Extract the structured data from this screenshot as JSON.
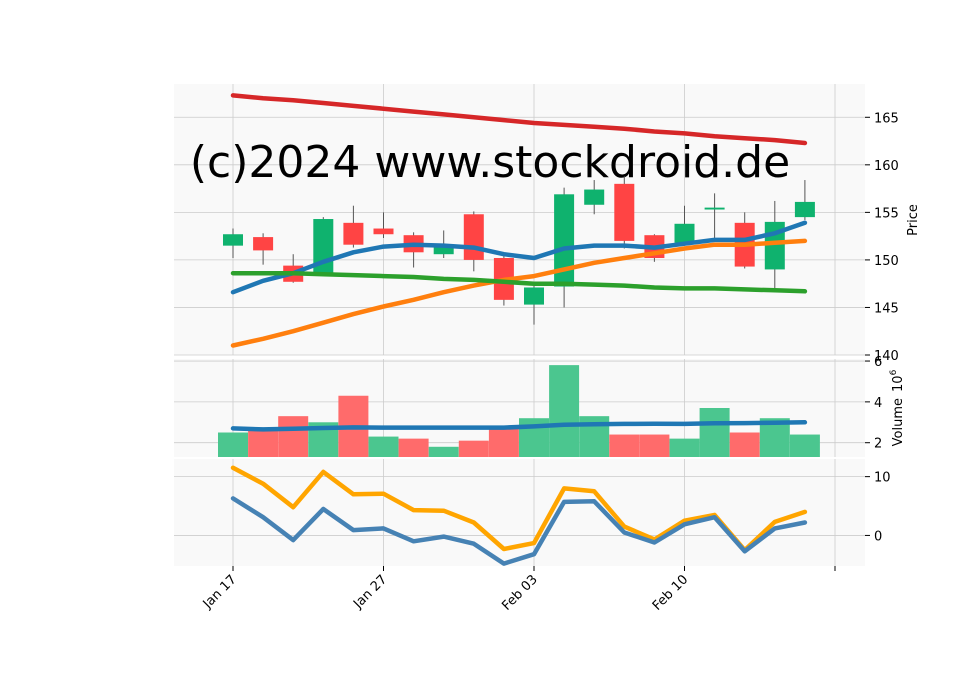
{
  "watermark": "(c)2024 www.stockdroid.de",
  "colors": {
    "panel_bg": "#f9f9f9",
    "grid": "#cccccc",
    "up": "#0fb26e",
    "down": "#ff4444",
    "vol_up": "#4bc68f",
    "vol_down": "#ff6b6b",
    "ma_short": "#1f77b4",
    "ma_mid": "#ff7f0e",
    "ma_long": "#2ca02c",
    "ma_longest": "#d62728",
    "vol_ma": "#1f77b4",
    "osc_a": "#ffa500",
    "osc_b": "#4682b4",
    "wick": "#555555",
    "watermark": "#e8e8e8"
  },
  "chart_data": {
    "type": "candlestick",
    "x_ticks": [
      "Jan 17",
      "Jan 27",
      "Feb 03",
      "Feb 10"
    ],
    "x_tick_index": [
      0,
      5,
      10,
      15
    ],
    "price_panel": {
      "ylabel": "Price",
      "ylim": [
        140,
        168.5
      ],
      "yticks": [
        "140",
        "145",
        "150",
        "155",
        "160",
        "165"
      ],
      "candles": [
        {
          "o": 151.5,
          "h": 153.3,
          "l": 150.2,
          "c": 152.7
        },
        {
          "o": 152.4,
          "h": 152.8,
          "l": 149.5,
          "c": 151.0
        },
        {
          "o": 149.4,
          "h": 150.6,
          "l": 147.6,
          "c": 147.7
        },
        {
          "o": 148.5,
          "h": 154.5,
          "l": 148.3,
          "c": 154.3
        },
        {
          "o": 153.9,
          "h": 155.7,
          "l": 151.3,
          "c": 151.6
        },
        {
          "o": 153.3,
          "h": 155.0,
          "l": 152.3,
          "c": 152.7
        },
        {
          "o": 152.6,
          "h": 152.9,
          "l": 149.2,
          "c": 150.8
        },
        {
          "o": 150.6,
          "h": 153.1,
          "l": 150.2,
          "c": 151.4
        },
        {
          "o": 154.8,
          "h": 155.1,
          "l": 148.8,
          "c": 150.0
        },
        {
          "o": 150.2,
          "h": 150.7,
          "l": 145.2,
          "c": 145.8
        },
        {
          "o": 145.3,
          "h": 147.6,
          "l": 143.2,
          "c": 147.1
        },
        {
          "o": 147.2,
          "h": 157.6,
          "l": 145.0,
          "c": 156.9
        },
        {
          "o": 155.8,
          "h": 158.4,
          "l": 154.8,
          "c": 157.4
        },
        {
          "o": 158.0,
          "h": 158.8,
          "l": 151.2,
          "c": 152.0
        },
        {
          "o": 152.6,
          "h": 152.7,
          "l": 149.8,
          "c": 150.2
        },
        {
          "o": 151.8,
          "h": 155.7,
          "l": 151.5,
          "c": 153.8
        },
        {
          "o": 155.3,
          "h": 157.0,
          "l": 151.9,
          "c": 155.5
        },
        {
          "o": 153.9,
          "h": 155.0,
          "l": 149.1,
          "c": 149.3
        },
        {
          "o": 149.0,
          "h": 156.2,
          "l": 146.9,
          "c": 154.0
        },
        {
          "o": 154.5,
          "h": 158.4,
          "l": 154.2,
          "c": 156.1
        }
      ],
      "series": [
        {
          "key": "ma_short",
          "values": [
            146.6,
            147.8,
            148.6,
            149.8,
            150.8,
            151.4,
            151.6,
            151.5,
            151.3,
            150.6,
            150.2,
            151.2,
            151.5,
            151.5,
            151.3,
            151.7,
            152.1,
            152.1,
            152.8,
            153.9
          ]
        },
        {
          "key": "ma_mid",
          "values": [
            141.0,
            141.7,
            142.5,
            143.4,
            144.3,
            145.1,
            145.8,
            146.6,
            147.3,
            147.9,
            148.3,
            149.0,
            149.7,
            150.2,
            150.7,
            151.2,
            151.6,
            151.6,
            151.8,
            152.0
          ]
        },
        {
          "key": "ma_long",
          "values": [
            148.6,
            148.6,
            148.6,
            148.5,
            148.4,
            148.3,
            148.2,
            148.0,
            147.9,
            147.7,
            147.5,
            147.5,
            147.4,
            147.3,
            147.1,
            147.0,
            147.0,
            146.9,
            146.8,
            146.7
          ]
        },
        {
          "key": "ma_longest",
          "values": [
            167.3,
            167.0,
            166.8,
            166.5,
            166.2,
            165.9,
            165.6,
            165.3,
            165.0,
            164.7,
            164.4,
            164.2,
            164.0,
            163.8,
            163.5,
            163.3,
            163.0,
            162.8,
            162.6,
            162.3
          ]
        }
      ]
    },
    "volume_panel": {
      "ylabel": "Volume",
      "scale_label": "10",
      "scale_exp": "6",
      "ylim": [
        1.3,
        6.1
      ],
      "yticks": [
        "2",
        "4",
        "6"
      ],
      "volumes": [
        2.5,
        2.6,
        3.3,
        3.0,
        4.3,
        2.3,
        2.2,
        1.8,
        2.1,
        2.7,
        3.2,
        5.8,
        3.3,
        2.4,
        2.4,
        2.2,
        3.7,
        2.5,
        3.2,
        2.4
      ],
      "up": [
        true,
        false,
        false,
        true,
        false,
        true,
        false,
        true,
        false,
        false,
        true,
        true,
        true,
        false,
        false,
        true,
        true,
        false,
        true,
        true
      ],
      "ma": [
        2.7,
        2.65,
        2.68,
        2.72,
        2.75,
        2.74,
        2.74,
        2.74,
        2.74,
        2.74,
        2.8,
        2.88,
        2.9,
        2.92,
        2.93,
        2.92,
        2.95,
        2.96,
        2.98,
        3.0
      ]
    },
    "osc_panel": {
      "ylim": [
        -5.2,
        13.0
      ],
      "yticks": [
        "0",
        "10"
      ],
      "series": [
        {
          "key": "osc_a",
          "values": [
            11.5,
            8.8,
            4.8,
            10.8,
            7.0,
            7.1,
            4.3,
            4.2,
            2.2,
            -2.3,
            -1.3,
            8.0,
            7.5,
            1.5,
            -0.7,
            2.5,
            3.5,
            -2.5,
            2.3,
            4.0
          ]
        },
        {
          "key": "osc_b",
          "values": [
            6.3,
            3.1,
            -0.8,
            4.5,
            0.9,
            1.2,
            -1.0,
            -0.2,
            -1.4,
            -4.8,
            -3.2,
            5.7,
            5.8,
            0.5,
            -1.2,
            1.9,
            3.1,
            -2.7,
            1.2,
            2.2
          ]
        }
      ]
    }
  }
}
